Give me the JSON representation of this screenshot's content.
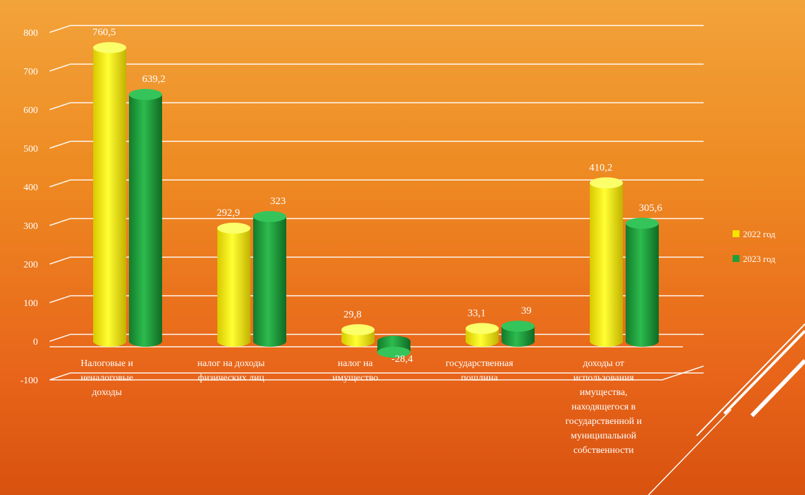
{
  "chart_data": {
    "type": "bar",
    "categories": [
      "Налоговые и неналоговые доходы",
      "налог на доходы физических лиц",
      "налог на имущество",
      "государственная пошлина",
      "доходы от использования имущества, находящегося в государственной и муниципальной собственности"
    ],
    "series": [
      {
        "name": "2022 год",
        "values": [
          760.5,
          292.9,
          29.8,
          33.1,
          410.2
        ],
        "labels": [
          "760,5",
          "292,9",
          "29,8",
          "33,1",
          "410,2"
        ]
      },
      {
        "name": "2023 год",
        "values": [
          639.2,
          323,
          -28.4,
          39,
          305.6
        ],
        "labels": [
          "639,2",
          "323",
          "-28,4",
          "39",
          "305,6"
        ]
      }
    ],
    "ylim": [
      -100,
      800
    ],
    "yticks": [
      -100,
      0,
      100,
      200,
      300,
      400,
      500,
      600,
      700,
      800
    ],
    "legend_position": "right",
    "colors": {
      "2022 год": "#f5e400",
      "2023 год": "#1f9f3c"
    },
    "grid": true
  }
}
